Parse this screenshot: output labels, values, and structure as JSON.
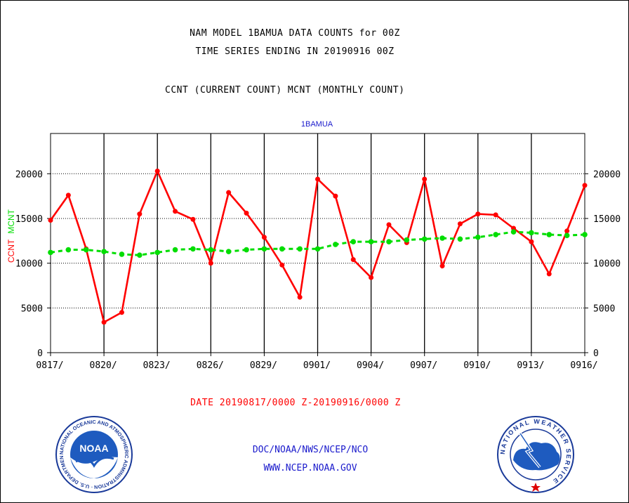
{
  "titles": {
    "line1": "NAM MODEL 1BAMUA DATA COUNTS for 00Z",
    "line2": "TIME SERIES ENDING IN 20190916 00Z",
    "line3": "CCNT (CURRENT COUNT) MCNT (MONTHLY COUNT)"
  },
  "date_range": "DATE 20190817/0000 Z-20190916/0000 Z",
  "footer": {
    "line1": "DOC/NOAA/NWS/NCEP/NCO",
    "line2": "WWW.NCEP.NOAA.GOV"
  },
  "logos": {
    "left": {
      "text": "NOAA",
      "ring_text": "NATIONAL OCEANIC AND ATMOSPHERIC ADMINISTRATION · U.S. DEPARTMENT OF COMMERCE"
    },
    "right": {
      "ring_text": "NATIONAL WEATHER SERVICE"
    }
  },
  "chart_data": {
    "type": "line",
    "title": "1BAMUA",
    "ylabel_left": "CCNT",
    "ylabel_right": "MCNT",
    "ylim": [
      0,
      24500
    ],
    "yticks": [
      0,
      5000,
      10000,
      15000,
      20000
    ],
    "xticks": [
      "0817/",
      "0820/",
      "0823/",
      "0826/",
      "0829/",
      "0901/",
      "0904/",
      "0907/",
      "0910/",
      "0913/",
      "0916/"
    ],
    "x_points": 31,
    "grid": true,
    "colors": {
      "ccnt": "#ff0000",
      "mcnt": "#00dd00",
      "title": "#1a1acc"
    },
    "series": [
      {
        "name": "CCNT",
        "values": [
          14800,
          17600,
          11600,
          3400,
          4500,
          15500,
          20300,
          15800,
          14900,
          10000,
          17900,
          15600,
          12900,
          9800,
          6200,
          19400,
          17500,
          10400,
          8400,
          14300,
          12300,
          19400,
          9700,
          14400,
          15500,
          15400,
          13900,
          12400,
          8800,
          13600,
          18700
        ]
      },
      {
        "name": "MCNT",
        "values": [
          11200,
          11500,
          11500,
          11300,
          11000,
          10900,
          11200,
          11500,
          11600,
          11500,
          11300,
          11500,
          11600,
          11600,
          11600,
          11600,
          12100,
          12400,
          12400,
          12400,
          12600,
          12700,
          12800,
          12700,
          12900,
          13200,
          13500,
          13400,
          13200,
          13100,
          13200
        ]
      }
    ]
  }
}
